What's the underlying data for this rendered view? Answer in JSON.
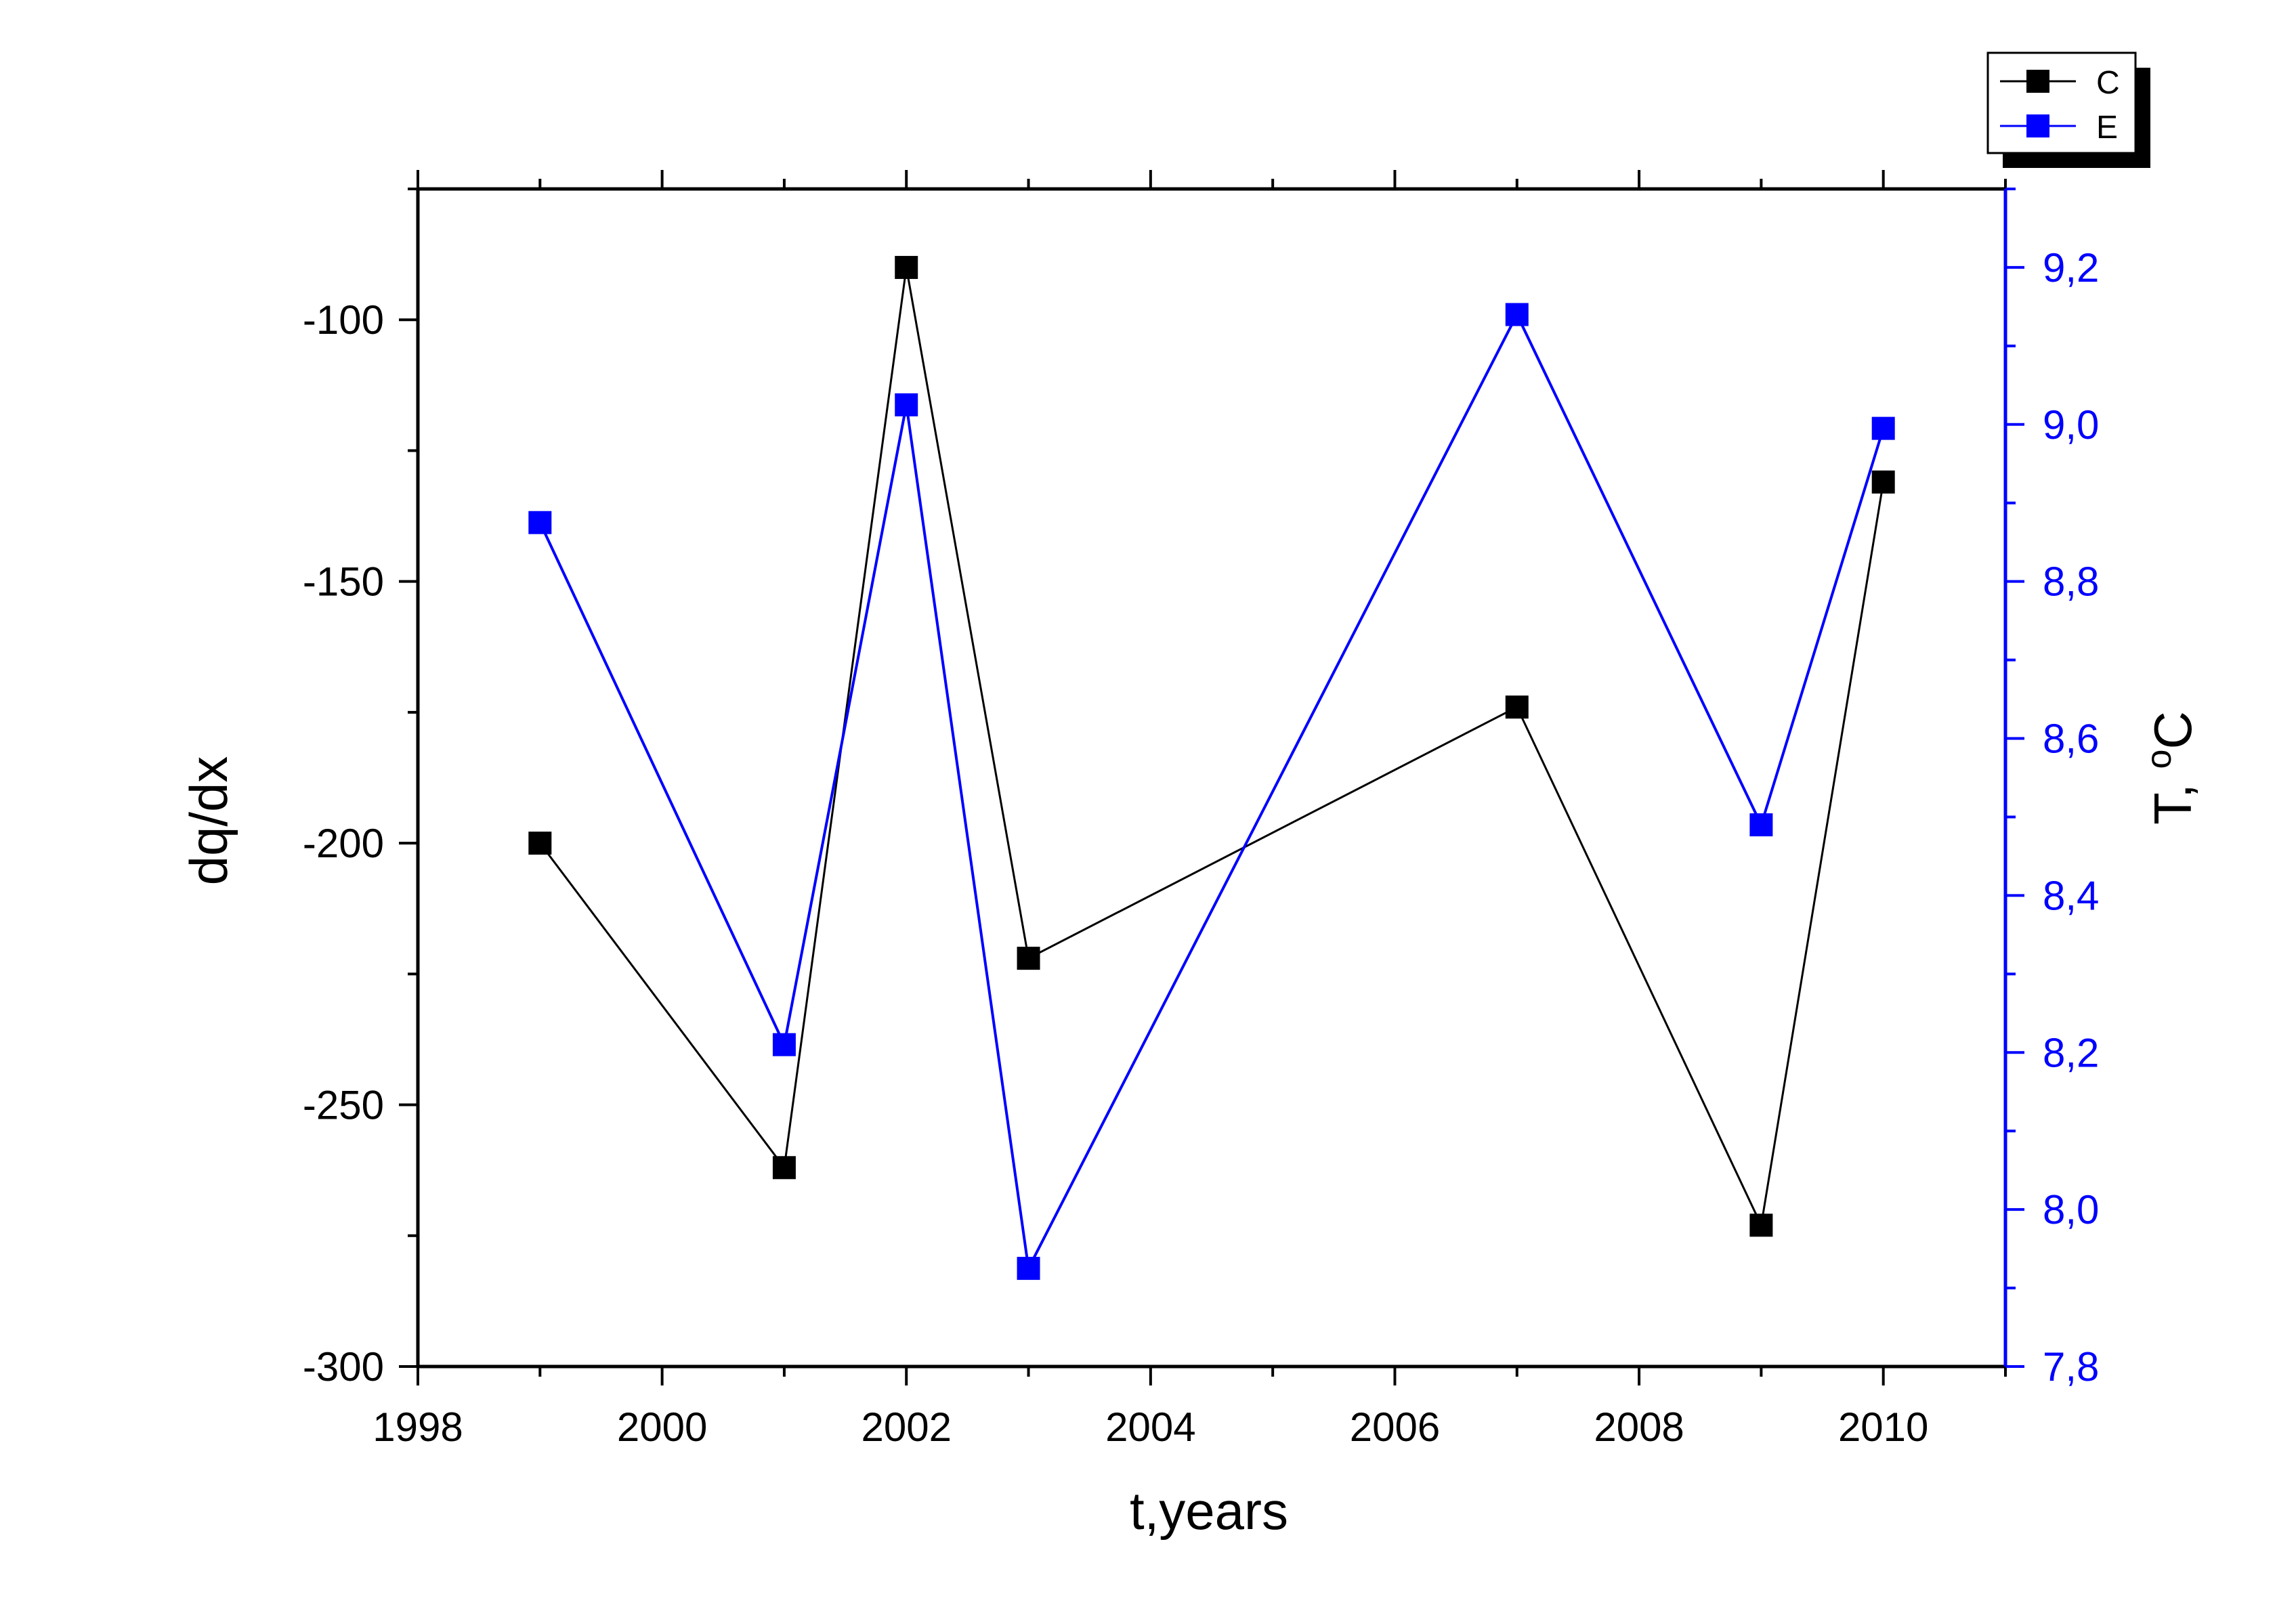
{
  "chart_data": {
    "type": "line",
    "xlabel": "t,years",
    "ylabel_left": "dq/dx",
    "ylabel_right": "T, °C",
    "ylabel_right_parts": {
      "main": "T, ",
      "sup": "o",
      "tail": "C"
    },
    "xlim": [
      1998,
      2011
    ],
    "ylim_left": [
      -300,
      -75
    ],
    "ylim_right": [
      7.8,
      9.3
    ],
    "x_ticks": [
      1998,
      2000,
      2002,
      2004,
      2006,
      2008,
      2010
    ],
    "y_left_ticks": [
      -300,
      -250,
      -200,
      -150,
      -100
    ],
    "y_right_ticks": [
      "7,8",
      "8,0",
      "8,2",
      "8,4",
      "8,6",
      "8,8",
      "9,0",
      "9,2"
    ],
    "y_right_tick_values": [
      7.8,
      8.0,
      8.2,
      8.4,
      8.6,
      8.8,
      9.0,
      9.2
    ],
    "grid": false,
    "legend_position": "top-right",
    "series": [
      {
        "name": "C",
        "axis": "left",
        "color": "#000000",
        "x": [
          1999,
          2001,
          2002,
          2003,
          2007,
          2009,
          2010
        ],
        "y": [
          -200,
          -262,
          -90,
          -222,
          -174,
          -273,
          -131
        ]
      },
      {
        "name": "E",
        "axis": "right",
        "color": "#0000ff",
        "x": [
          1999,
          2001,
          2002,
          2003,
          2007,
          2009,
          2010
        ],
        "y": [
          8.875,
          8.21,
          9.025,
          7.925,
          9.14,
          8.49,
          8.995
        ]
      }
    ]
  }
}
